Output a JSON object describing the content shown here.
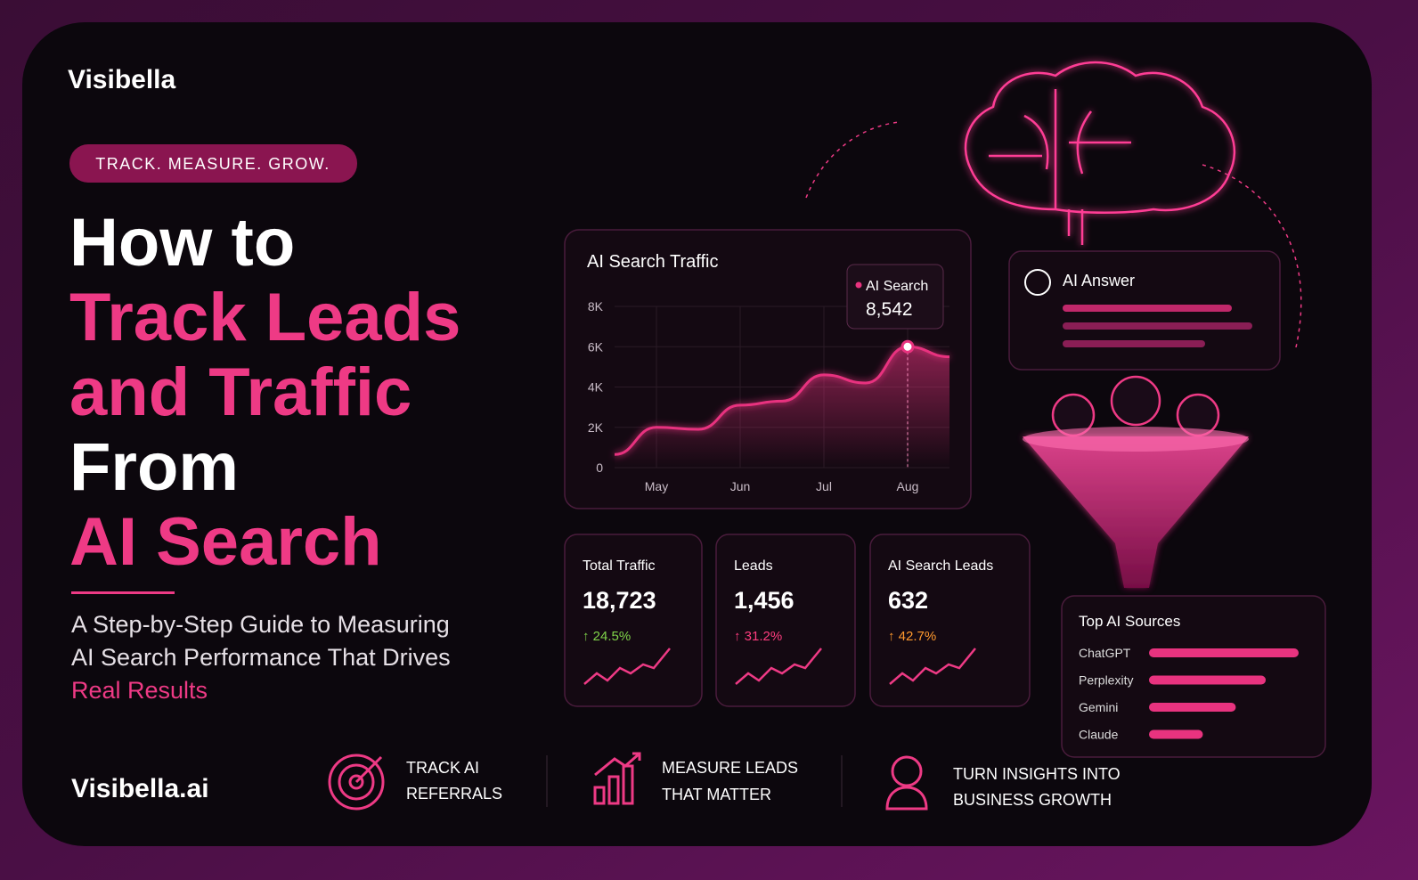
{
  "brand": "Visibella",
  "tagline": "TRACK. MEASURE. GROW.",
  "headline": {
    "line1": "How to",
    "line2": "Track Leads",
    "line3": "and Traffic",
    "line4": "From",
    "line5": "AI Search"
  },
  "subtitle": {
    "line1": "A Step-by-Step Guide to Measuring",
    "line2": "AI Search Performance That Drives",
    "highlight": "Real Results"
  },
  "website": "Visibella.ai",
  "features": [
    {
      "line1": "TRACK AI",
      "line2": "REFERRALS"
    },
    {
      "line1": "MEASURE LEADS",
      "line2": "THAT MATTER"
    },
    {
      "line1": "TURN INSIGHTS INTO",
      "line2": "BUSINESS GROWTH"
    }
  ],
  "traffic_chart": {
    "type": "line",
    "title": "AI Search Traffic",
    "categories": [
      null,
      "May",
      null,
      "Jun",
      null,
      "Jul",
      null,
      "Aug",
      null
    ],
    "values": [
      650,
      2000,
      1900,
      3100,
      3300,
      4600,
      4200,
      6000,
      5500
    ],
    "ylim": [
      0,
      8000
    ],
    "yticks": [
      0,
      {
        "value": 2000,
        "label": "2K"
      },
      {
        "value": 4000,
        "label": "4K"
      },
      {
        "value": 6000,
        "label": "6K"
      },
      {
        "value": 8000,
        "label": "8K"
      }
    ],
    "color": "#e8337f",
    "grid": true,
    "tooltip": {
      "name": "AI Search",
      "value": "8,542"
    }
  },
  "ai_answer": {
    "title": "AI Answer"
  },
  "kpis": [
    {
      "label": "Total Traffic",
      "value": "18,723",
      "change": "↑ 24.5%",
      "color": "#7fd34a"
    },
    {
      "label": "Leads",
      "value": "1,456",
      "change": "↑ 31.2%",
      "color": "#ff3d7f"
    },
    {
      "label": "AI Search Leads",
      "value": "632",
      "change": "↑ 42.7%",
      "color": "#ff9a2e"
    }
  ],
  "top_sources": {
    "type": "bar",
    "title": "Top AI Sources",
    "categories": [
      "ChatGPT",
      "Perplexity",
      "Gemini",
      "Claude"
    ],
    "values": [
      100,
      78,
      58,
      36
    ],
    "color": "#e8337f"
  }
}
